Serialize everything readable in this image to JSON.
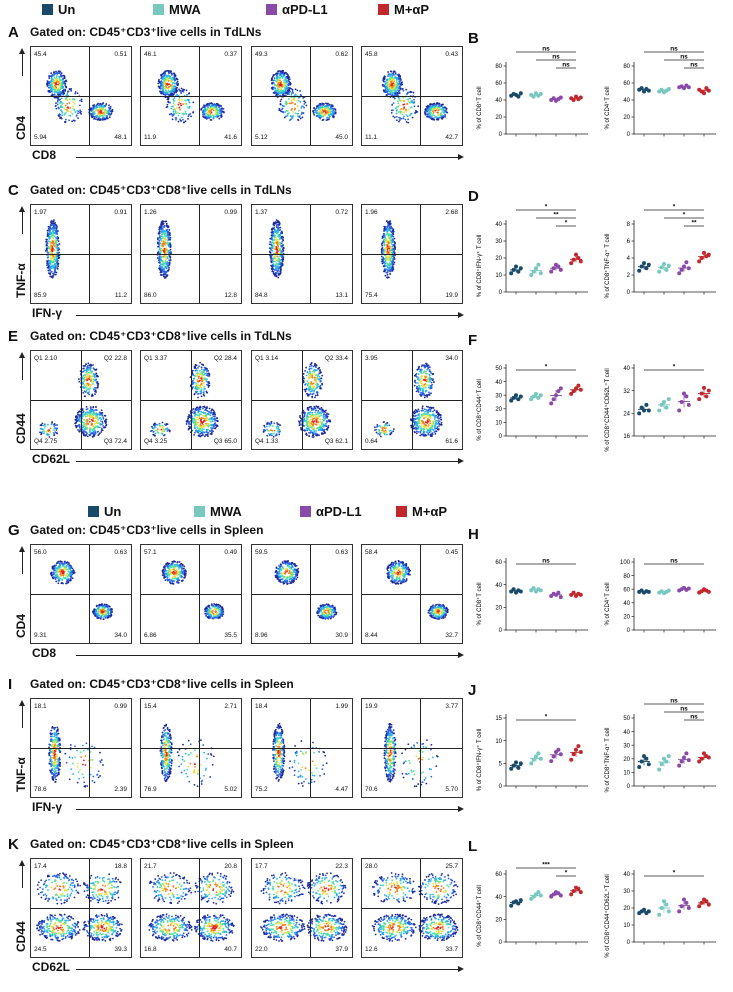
{
  "legend": [
    {
      "label": "Un",
      "color": "#1a4a6a"
    },
    {
      "label": "MWA",
      "color": "#78c8c0"
    },
    {
      "label": "αPD-L1",
      "color": "#8a4aa8"
    },
    {
      "label": "M+αP",
      "color": "#c0282c"
    }
  ],
  "rows": [
    {
      "letter": "A",
      "title": "Gated on: CD45⁺CD3⁺live cells in TdLNs",
      "y_axis": "CD4",
      "x_axis": "CD8",
      "layout": "quad",
      "panels": [
        [
          "45.4",
          "0.51",
          "5.94",
          "48.1"
        ],
        [
          "46.1",
          "0.37",
          "11.9",
          "41.6"
        ],
        [
          "49.3",
          "0.62",
          "5.12",
          "45.0"
        ],
        [
          "45.8",
          "0.43",
          "11.1",
          "42.7"
        ]
      ]
    },
    {
      "letter": "C",
      "title": "Gated on: CD45⁺CD3⁺CD8⁺live cells in TdLNs",
      "y_axis": "TNF-α",
      "x_axis": "IFN-γ",
      "layout": "quad",
      "panels": [
        [
          "1.97",
          "0.91",
          "85.9",
          "11.2"
        ],
        [
          "1.26",
          "0.99",
          "86.0",
          "12.8"
        ],
        [
          "1.37",
          "0.72",
          "84.8",
          "13.1"
        ],
        [
          "1.96",
          "2.68",
          "75.4",
          "19.9"
        ]
      ]
    },
    {
      "letter": "E",
      "title": "Gated on: CD45⁺CD3⁺CD8⁺live cells in  TdLNs",
      "y_axis": "CD44",
      "x_axis": "CD62L",
      "layout": "q4",
      "panels": [
        [
          "Q1 2.10",
          "Q2 22.8",
          "Q4 2.75",
          "Q3 72.4"
        ],
        [
          "Q1 3.37",
          "Q2 28.4",
          "Q4 3.25",
          "Q3 65.0"
        ],
        [
          "Q1 3.14",
          "Q2 33.4",
          "Q4 1.33",
          "Q3 62.1"
        ],
        [
          "3.95",
          "34.0",
          "0.64",
          "61.6"
        ]
      ]
    },
    {
      "letter": "G",
      "title": "Gated on: CD45⁺CD3⁺live cells in Spleen",
      "y_axis": "CD4",
      "x_axis": "CD8",
      "layout": "quad",
      "panels": [
        [
          "56.0",
          "0.63",
          "9.31",
          "34.0"
        ],
        [
          "57.1",
          "0.49",
          "6.86",
          "35.5"
        ],
        [
          "59.5",
          "0.63",
          "8.96",
          "30.9"
        ],
        [
          "58.4",
          "0.45",
          "8.44",
          "32.7"
        ]
      ]
    },
    {
      "letter": "I",
      "title": "Gated on: CD45⁺CD3⁺CD8⁺live cells in Spleen",
      "y_axis": "TNF-α",
      "x_axis": "IFN-γ",
      "layout": "quad",
      "panels": [
        [
          "18.1",
          "0.99",
          "78.6",
          "2.39"
        ],
        [
          "15.4",
          "2.71",
          "76.9",
          "5.02"
        ],
        [
          "18.4",
          "1.99",
          "75.2",
          "4.47"
        ],
        [
          "19.9",
          "3.77",
          "70.6",
          "5.70"
        ]
      ]
    },
    {
      "letter": "K",
      "title": "Gated on: CD45⁺CD3⁺CD8⁺live cells in Spleen",
      "y_axis": "CD44",
      "x_axis": "CD62L",
      "layout": "quad",
      "panels": [
        [
          "17.4",
          "18.8",
          "24.5",
          "39.3"
        ],
        [
          "21.7",
          "20.8",
          "16.8",
          "40.7"
        ],
        [
          "17.7",
          "22.3",
          "22.0",
          "37.9"
        ],
        [
          "28.0",
          "25.7",
          "12.6",
          "33.7"
        ]
      ]
    }
  ],
  "chart_data": [
    {
      "panel": "B",
      "type": "scatter",
      "ylabel": "% of CD8⁺T cell",
      "ylim": [
        0,
        80
      ],
      "ticks": [
        "0",
        "20",
        "40",
        "60",
        "80"
      ],
      "series": [
        [
          45,
          47,
          46,
          44,
          48
        ],
        [
          46,
          44,
          48,
          45,
          47
        ],
        [
          40,
          42,
          39,
          41,
          43
        ],
        [
          42,
          40,
          44,
          41,
          43
        ]
      ],
      "sig": [
        [
          "ns",
          1,
          4
        ],
        [
          "ns",
          2,
          4
        ],
        [
          "ns",
          3,
          4
        ]
      ]
    },
    {
      "panel": "B2",
      "type": "scatter",
      "ylabel": "% of CD4⁺T cell",
      "ylim": [
        0,
        80
      ],
      "ticks": [
        "0",
        "20",
        "40",
        "60",
        "80"
      ],
      "series": [
        [
          52,
          54,
          50,
          53,
          51
        ],
        [
          50,
          52,
          49,
          51,
          53
        ],
        [
          55,
          56,
          54,
          57,
          55
        ],
        [
          52,
          50,
          48,
          54,
          51
        ]
      ],
      "sig": [
        [
          "ns",
          1,
          4
        ],
        [
          "ns",
          2,
          4
        ],
        [
          "ns",
          3,
          4
        ]
      ]
    },
    {
      "panel": "D",
      "type": "scatter",
      "ylabel": "% of CD8⁺IFN-γ⁺ T cell",
      "ylim": [
        0,
        40
      ],
      "ticks": [
        "0",
        "10",
        "20",
        "30",
        "40"
      ],
      "series": [
        [
          11,
          13,
          15,
          12,
          14
        ],
        [
          10,
          12,
          14,
          16,
          11
        ],
        [
          12,
          14,
          16,
          15,
          13
        ],
        [
          17,
          19,
          22,
          20,
          18
        ]
      ],
      "sig": [
        [
          "*",
          1,
          4
        ],
        [
          "**",
          2,
          4
        ],
        [
          "*",
          3,
          4
        ]
      ]
    },
    {
      "panel": "D2",
      "type": "scatter",
      "ylabel": "% of CD8⁺TNF-α⁺ T cell",
      "ylim": [
        0,
        8
      ],
      "ticks": [
        "0",
        "2",
        "4",
        "6",
        "8"
      ],
      "series": [
        [
          2.5,
          3.0,
          3.4,
          2.8,
          3.2
        ],
        [
          2.4,
          2.9,
          3.3,
          2.6,
          3.1
        ],
        [
          2.2,
          2.6,
          3.0,
          3.5,
          2.8
        ],
        [
          3.6,
          4.0,
          4.6,
          4.2,
          4.4
        ]
      ],
      "sig": [
        [
          "*",
          1,
          4
        ],
        [
          "*",
          2,
          4
        ],
        [
          "**",
          3,
          4
        ]
      ]
    },
    {
      "panel": "F",
      "type": "scatter",
      "ylabel": "% of CD8⁺CD44⁺T cell",
      "ylim": [
        0,
        50
      ],
      "ticks": [
        "0",
        "10",
        "20",
        "30",
        "40",
        "50"
      ],
      "series": [
        [
          26,
          28,
          30,
          27,
          29
        ],
        [
          27,
          29,
          31,
          28,
          30
        ],
        [
          24,
          27,
          30,
          33,
          35
        ],
        [
          31,
          33,
          35,
          37,
          34
        ]
      ],
      "sig": [
        [
          "*",
          1,
          4
        ]
      ]
    },
    {
      "panel": "F2",
      "type": "scatter",
      "ylabel": "% of CD8⁺CD44⁺CD62L⁺T cell",
      "ylim": [
        16,
        40
      ],
      "ticks": [
        "16",
        "24",
        "32",
        "40"
      ],
      "series": [
        [
          24,
          26,
          25,
          27,
          25
        ],
        [
          25,
          27,
          28,
          26,
          29
        ],
        [
          25,
          28,
          31,
          30,
          27
        ],
        [
          29,
          31,
          33,
          30,
          32
        ]
      ],
      "sig": [
        [
          "*",
          1,
          4
        ]
      ]
    },
    {
      "panel": "H",
      "type": "scatter",
      "ylabel": "% of CD8⁺T cell",
      "ylim": [
        0,
        60
      ],
      "ticks": [
        "0",
        "20",
        "40",
        "60"
      ],
      "series": [
        [
          34,
          36,
          33,
          35,
          34
        ],
        [
          35,
          37,
          34,
          36,
          35
        ],
        [
          30,
          32,
          31,
          33,
          29
        ],
        [
          31,
          33,
          30,
          32,
          31
        ]
      ],
      "sig": [
        [
          "ns",
          1,
          4
        ]
      ]
    },
    {
      "panel": "H2",
      "type": "scatter",
      "ylabel": "% of CD4⁺T cell",
      "ylim": [
        0,
        100
      ],
      "ticks": [
        "0",
        "20",
        "40",
        "60",
        "80",
        "100"
      ],
      "series": [
        [
          56,
          58,
          55,
          57,
          56
        ],
        [
          55,
          57,
          54,
          56,
          58
        ],
        [
          58,
          60,
          62,
          59,
          61
        ],
        [
          55,
          57,
          60,
          58,
          56
        ]
      ],
      "sig": [
        [
          "ns",
          1,
          4
        ]
      ]
    },
    {
      "panel": "J",
      "type": "scatter",
      "ylabel": "% of CD8⁺IFN-γ⁺ T cell",
      "ylim": [
        0,
        15
      ],
      "ticks": [
        "0",
        "5",
        "10",
        "15"
      ],
      "series": [
        [
          3.8,
          4.5,
          5.2,
          4.0,
          5.0
        ],
        [
          5.0,
          5.8,
          6.5,
          7.2,
          6.0
        ],
        [
          5.5,
          6.5,
          7.5,
          8.0,
          7.0
        ],
        [
          5.8,
          7.0,
          8.0,
          8.8,
          7.5
        ]
      ],
      "sig": [
        [
          "*",
          1,
          4
        ]
      ]
    },
    {
      "panel": "J2",
      "type": "scatter",
      "ylabel": "% of CD8⁺TNF-α⁺ T cell",
      "ylim": [
        0,
        50
      ],
      "ticks": [
        "0",
        "10",
        "20",
        "30",
        "40",
        "50"
      ],
      "series": [
        [
          14,
          18,
          22,
          20,
          16
        ],
        [
          12,
          16,
          20,
          18,
          22
        ],
        [
          15,
          18,
          21,
          24,
          19
        ],
        [
          18,
          20,
          24,
          22,
          21
        ]
      ],
      "sig": [
        [
          "ns",
          1,
          4
        ],
        [
          "ns",
          2,
          4
        ],
        [
          "ns",
          3,
          4
        ]
      ]
    },
    {
      "panel": "L",
      "type": "scatter",
      "ylabel": "% of CD8⁺CD44⁺T cell",
      "ylim": [
        0,
        60
      ],
      "ticks": [
        "0",
        "20",
        "40",
        "60"
      ],
      "series": [
        [
          32,
          35,
          36,
          34,
          37
        ],
        [
          38,
          40,
          42,
          44,
          41
        ],
        [
          40,
          42,
          44,
          43,
          41
        ],
        [
          42,
          45,
          48,
          47,
          44
        ]
      ],
      "sig": [
        [
          "***",
          1,
          4
        ],
        [
          "*",
          3,
          4
        ]
      ]
    },
    {
      "panel": "L2",
      "type": "scatter",
      "ylabel": "% of CD8⁺CD44⁺CD62L⁺T cell",
      "ylim": [
        0,
        40
      ],
      "ticks": [
        "0",
        "10",
        "20",
        "30",
        "40"
      ],
      "series": [
        [
          17,
          18,
          19,
          17,
          18
        ],
        [
          16,
          20,
          24,
          22,
          18
        ],
        [
          18,
          21,
          25,
          23,
          20
        ],
        [
          21,
          23,
          25,
          24,
          22
        ]
      ],
      "sig": [
        [
          "*",
          1,
          4
        ]
      ]
    }
  ]
}
